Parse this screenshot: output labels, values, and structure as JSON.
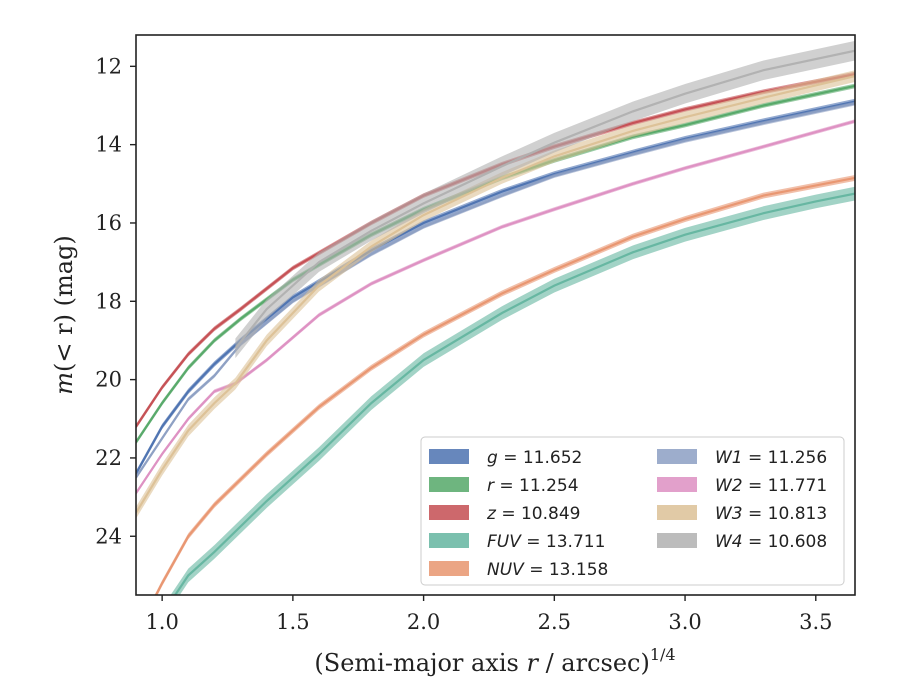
{
  "chart_data": {
    "type": "line",
    "title": "",
    "xlabel": "(Semi-major axis r / arcsec)^{1/4}",
    "xlabel_parts": {
      "pre": "(Semi-major axis ",
      "var": "r",
      "post": " / arcsec)",
      "sup": "1/4"
    },
    "ylabel": "m(< r) (mag)",
    "ylabel_parts": {
      "pre": "m",
      "mid": "(< r)",
      "post": " (mag)"
    },
    "xlim": [
      0.9,
      3.65
    ],
    "ylim": [
      25.5,
      11.2
    ],
    "y_inverted": true,
    "x_ticks": [
      1.0,
      1.5,
      2.0,
      2.5,
      3.0,
      3.5
    ],
    "x_tick_labels": [
      "1.0",
      "1.5",
      "2.0",
      "2.5",
      "3.0",
      "3.5"
    ],
    "y_ticks": [
      12,
      14,
      16,
      18,
      20,
      22,
      24
    ],
    "y_tick_labels": [
      "12",
      "14",
      "16",
      "18",
      "20",
      "22",
      "24"
    ],
    "grid": false,
    "legend_position": "lower-right",
    "legend_columns": 2,
    "series": [
      {
        "name": "g = 11.652",
        "label_var": "g",
        "label_value": "11.652",
        "color": "#4c72b0",
        "x": [
          0.9,
          1.0,
          1.1,
          1.2,
          1.3,
          1.5,
          1.8,
          2.0,
          2.3,
          2.5,
          2.8,
          3.0,
          3.3,
          3.65
        ],
        "y": [
          22.4,
          21.2,
          20.3,
          19.6,
          19.0,
          17.9,
          16.7,
          16.0,
          15.2,
          14.75,
          14.2,
          13.85,
          13.4,
          12.9
        ],
        "band": 0.14
      },
      {
        "name": "r = 11.254",
        "label_var": "r",
        "label_value": "11.254",
        "color": "#55a868",
        "x": [
          0.9,
          1.0,
          1.1,
          1.2,
          1.3,
          1.5,
          1.8,
          2.0,
          2.3,
          2.5,
          2.8,
          3.0,
          3.3,
          3.65
        ],
        "y": [
          21.6,
          20.6,
          19.7,
          19.0,
          18.45,
          17.45,
          16.3,
          15.65,
          14.85,
          14.4,
          13.8,
          13.5,
          13.0,
          12.5
        ],
        "band": 0.12
      },
      {
        "name": "z = 10.849",
        "label_var": "z",
        "label_value": "10.849",
        "color": "#c44e52",
        "x": [
          0.9,
          1.0,
          1.1,
          1.2,
          1.3,
          1.5,
          1.8,
          2.0,
          2.3,
          2.5,
          2.8,
          3.0,
          3.3,
          3.65
        ],
        "y": [
          21.2,
          20.2,
          19.35,
          18.7,
          18.2,
          17.15,
          16.0,
          15.3,
          14.5,
          14.05,
          13.45,
          13.1,
          12.65,
          12.2
        ],
        "band": 0.12
      },
      {
        "name": "FUV = 13.711",
        "label_var": "FUV",
        "label_value": "13.711",
        "color": "#64b5a0",
        "x": [
          0.9,
          1.0,
          1.1,
          1.2,
          1.4,
          1.6,
          1.8,
          2.0,
          2.3,
          2.5,
          2.8,
          3.0,
          3.3,
          3.5,
          3.65
        ],
        "y": [
          27.0,
          26.0,
          25.0,
          24.4,
          23.1,
          21.9,
          20.6,
          19.5,
          18.3,
          17.6,
          16.75,
          16.3,
          15.75,
          15.45,
          15.25
        ],
        "band": 0.35
      },
      {
        "name": "NUV = 13.158",
        "label_var": "NUV",
        "label_value": "13.158",
        "color": "#e8956f",
        "x": [
          0.9,
          1.0,
          1.1,
          1.2,
          1.4,
          1.6,
          1.8,
          2.0,
          2.3,
          2.5,
          2.8,
          3.0,
          3.3,
          3.65
        ],
        "y": [
          26.5,
          25.2,
          24.0,
          23.2,
          21.9,
          20.7,
          19.7,
          18.85,
          17.8,
          17.2,
          16.35,
          15.9,
          15.3,
          14.85
        ],
        "band": 0.15
      },
      {
        "name": "W1 = 11.256",
        "label_var": "W1",
        "label_value": "11.256",
        "color": "#8c9fc3",
        "x": [
          0.9,
          1.0,
          1.1,
          1.2,
          1.3,
          1.5,
          1.8,
          2.0,
          2.3,
          2.5,
          2.8,
          3.0,
          3.3,
          3.65
        ],
        "y": [
          22.5,
          21.5,
          20.5,
          19.9,
          19.1,
          18.0,
          16.8,
          16.1,
          15.3,
          14.8,
          14.25,
          13.9,
          13.45,
          12.95
        ],
        "band": 0.1
      },
      {
        "name": "W2 = 11.771",
        "label_var": "W2",
        "label_value": "11.771",
        "color": "#dd8fc2",
        "x": [
          0.9,
          1.0,
          1.1,
          1.2,
          1.28,
          1.4,
          1.6,
          1.8,
          2.0,
          2.3,
          2.5,
          2.8,
          3.0,
          3.3,
          3.65
        ],
        "y": [
          22.9,
          21.9,
          21.0,
          20.3,
          20.1,
          19.5,
          18.35,
          17.55,
          16.95,
          16.1,
          15.65,
          15.0,
          14.6,
          14.05,
          13.4
        ],
        "band": 0.1
      },
      {
        "name": "W3 = 10.813",
        "label_var": "W3",
        "label_value": "10.813",
        "color": "#dcc196",
        "x": [
          0.9,
          1.0,
          1.1,
          1.2,
          1.28,
          1.4,
          1.6,
          1.8,
          2.0,
          2.3,
          2.5,
          2.8,
          3.0,
          3.3,
          3.65
        ],
        "y": [
          23.4,
          22.3,
          21.3,
          20.6,
          20.1,
          19.0,
          17.6,
          16.6,
          15.8,
          14.85,
          14.3,
          13.65,
          13.3,
          12.8,
          12.25
        ],
        "band": 0.3
      },
      {
        "name": "W4 = 10.608",
        "label_var": "W4",
        "label_value": "10.608",
        "color": "#b0b0b0",
        "x": [
          1.28,
          1.4,
          1.6,
          1.8,
          2.0,
          2.3,
          2.5,
          2.8,
          3.0,
          3.3,
          3.65
        ],
        "y": [
          19.2,
          18.2,
          17.0,
          16.2,
          15.5,
          14.55,
          13.95,
          13.15,
          12.7,
          12.1,
          11.6
        ],
        "band": 0.5
      }
    ]
  }
}
